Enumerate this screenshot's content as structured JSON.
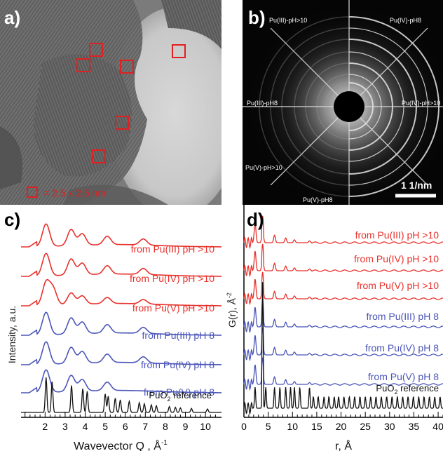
{
  "panels": {
    "a": {
      "label": "a)",
      "scale_legend": "= 2.5 x 2.5 nm",
      "box_color": "#e02020"
    },
    "b": {
      "label": "b)",
      "sector_labels": [
        "Pu(III)-pH>10",
        "Pu(IV)-pH8",
        "Pu(III)-pH8",
        "Pu(IV)-pH>10",
        "Pu(V)-pH>10",
        "Pu(V)-pH8"
      ],
      "scale_bar": "1 1/nm"
    }
  },
  "chart_data": [
    {
      "panel": "c)",
      "type": "line",
      "xlabel": "Wavevector Q , Å",
      "xlabel_superscript": "-1",
      "ylabel": "Intensity, a.u.",
      "xlim": [
        0.8,
        10.8
      ],
      "xticks": [
        2,
        3,
        4,
        5,
        6,
        7,
        8,
        9,
        10
      ],
      "series": [
        {
          "name": "from Pu(III) pH >10",
          "color": "#e8302a",
          "peaks_Q": [
            2.05,
            3.3,
            3.85,
            5.1,
            6.9
          ]
        },
        {
          "name": "from Pu(IV) pH >10",
          "color": "#e8302a",
          "peaks_Q": [
            2.05,
            3.3,
            3.85,
            5.1,
            6.9
          ]
        },
        {
          "name": "from Pu(V) pH >10",
          "color": "#e8302a",
          "peaks_Q": [
            2.05,
            2.4,
            3.3,
            3.85,
            5.1,
            6.9
          ]
        },
        {
          "name": "from Pu(III) pH 8",
          "color": "#4a55b8",
          "peaks_Q": [
            2.05,
            3.3,
            3.85,
            5.1,
            6.9
          ]
        },
        {
          "name": "from Pu(IV) pH 8",
          "color": "#4a55b8",
          "peaks_Q": [
            2.05,
            3.3,
            3.85,
            5.1,
            6.9
          ]
        },
        {
          "name": "from Pu(V) pH 8",
          "color": "#4a55b8",
          "peaks_Q": [
            2.05,
            3.3,
            3.85,
            5.1
          ]
        },
        {
          "name": "PuO2 reference",
          "name_parts": [
            "PuO",
            "2",
            " reference"
          ],
          "color": "#111111",
          "peaks_Q": [
            2.05,
            2.35,
            3.32,
            3.88,
            4.1,
            5.0,
            5.15,
            5.5,
            5.75,
            6.2,
            6.7,
            6.95,
            7.3,
            7.55,
            8.2,
            8.5,
            8.75,
            9.3,
            10.1
          ]
        }
      ]
    },
    {
      "panel": "d)",
      "type": "line",
      "xlabel": "r, Å",
      "ylabel": "G(r), Å",
      "ylabel_superscript": "-2",
      "xlim": [
        0,
        41
      ],
      "xticks": [
        0,
        5,
        10,
        15,
        20,
        25,
        30,
        35,
        40
      ],
      "series": [
        {
          "name": "from Pu(III) pH >10",
          "color": "#e8302a",
          "peaks_r": [
            2.3,
            3.85,
            6.3,
            8.6,
            10.4,
            13.5
          ]
        },
        {
          "name": "from Pu(IV) pH >10",
          "color": "#e8302a",
          "peaks_r": [
            2.3,
            3.85,
            6.3,
            8.6,
            10.4,
            13.5
          ]
        },
        {
          "name": "from Pu(V) pH >10",
          "color": "#e8302a",
          "peaks_r": [
            2.3,
            3.85,
            6.3,
            8.6,
            10.4,
            13.5
          ]
        },
        {
          "name": "from Pu(III) pH 8",
          "color": "#4a55b8",
          "peaks_r": [
            2.3,
            3.85,
            6.3,
            8.6,
            10.4,
            13.5
          ]
        },
        {
          "name": "from Pu(IV) pH 8",
          "color": "#4a55b8",
          "peaks_r": [
            2.3,
            3.85,
            6.3,
            8.6,
            10.4,
            13.5
          ]
        },
        {
          "name": "from Pu(V) pH 8",
          "color": "#4a55b8",
          "peaks_r": [
            2.3,
            3.85,
            6.3,
            8.6,
            10.4,
            13.5
          ]
        },
        {
          "name": "PuO2 reference",
          "name_parts": [
            "PuO",
            "2",
            " reference"
          ],
          "color": "#111111",
          "peaks_r": [
            2.3,
            3.85,
            4.5,
            6.3,
            7.4,
            8.6,
            9.6,
            10.4,
            11.5,
            13.5,
            14.3,
            15.3,
            16.5,
            17.5,
            18.6,
            19.5,
            20.6,
            21.7,
            22.8,
            23.9,
            25.0,
            26.1,
            27.2,
            28.3,
            29.4,
            30.5,
            31.6,
            32.7,
            33.8,
            34.9,
            36.0,
            37.1,
            38.2,
            39.3,
            40.4
          ]
        }
      ]
    }
  ]
}
